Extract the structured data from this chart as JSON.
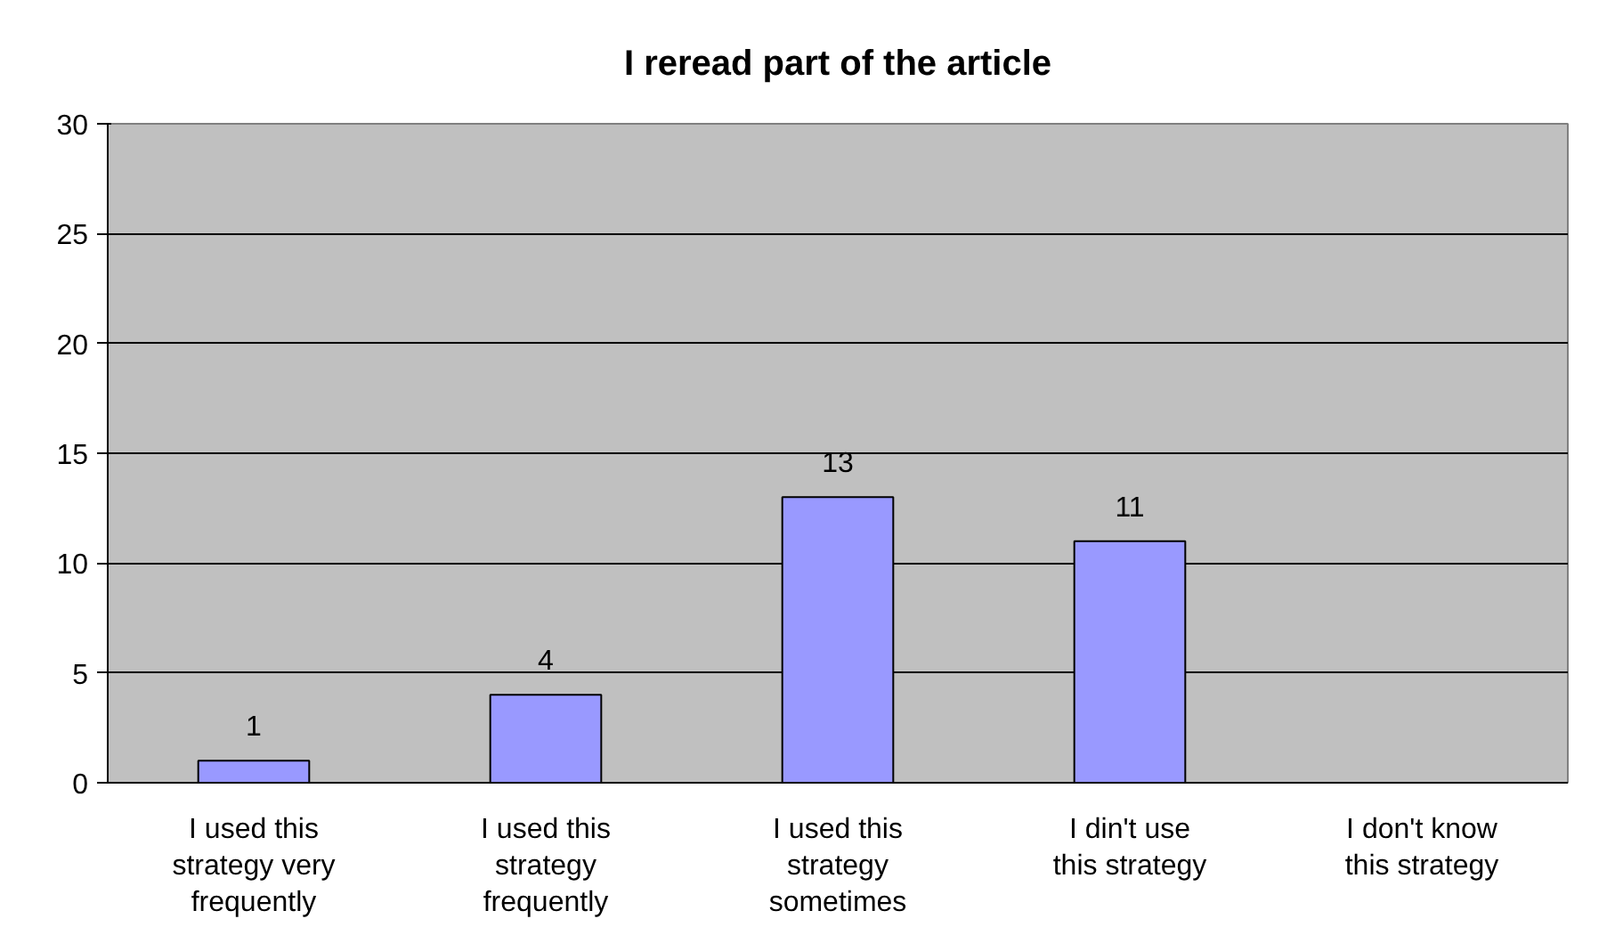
{
  "chart_data": {
    "type": "bar",
    "title": "I reread part of the article",
    "categories": [
      "I used this strategy very frequently",
      "I used this strategy frequently",
      "I used this strategy sometimes",
      "I din't use this strategy",
      "I don't know this strategy"
    ],
    "values": [
      1,
      4,
      13,
      11,
      null
    ],
    "color": "#9999ff",
    "ylim": [
      0,
      30
    ],
    "yticks": [
      0,
      5,
      10,
      15,
      20,
      25,
      30
    ],
    "grid": "y",
    "data_labels": true
  }
}
